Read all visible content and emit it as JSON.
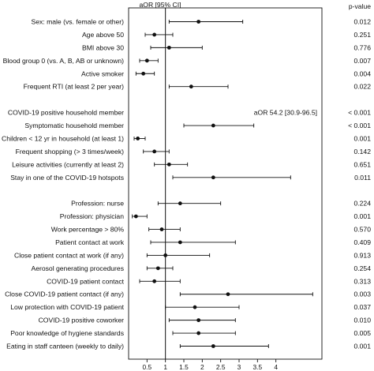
{
  "chart_data": {
    "type": "forest",
    "axis_title": "aOR [95% CI]",
    "pvalue_title": "p-value",
    "xlim": [
      0,
      5.25
    ],
    "reference_line": 1,
    "xticks": [
      0.5,
      1,
      1.5,
      2,
      2.5,
      3,
      3.5,
      4
    ],
    "rows": [
      {
        "label": "Sex: male (vs. female or other)",
        "aor": 1.9,
        "lo": 1.1,
        "hi": 3.1,
        "p": "0.012"
      },
      {
        "label": "Age above 50",
        "aor": 0.7,
        "lo": 0.45,
        "hi": 1.2,
        "p": "0.251"
      },
      {
        "label": "BMI above 30",
        "aor": 1.1,
        "lo": 0.6,
        "hi": 2.0,
        "p": "0.776"
      },
      {
        "label": "Blood group 0 (vs. A, B, AB or unknown)",
        "aor": 0.5,
        "lo": 0.3,
        "hi": 0.8,
        "p": "0.007"
      },
      {
        "label": "Active smoker",
        "aor": 0.4,
        "lo": 0.2,
        "hi": 0.7,
        "p": "0.004"
      },
      {
        "label": "Frequent RTI (at least 2 per year)",
        "aor": 1.7,
        "lo": 1.1,
        "hi": 2.7,
        "p": "0.022"
      },
      {
        "label": "",
        "aor": null,
        "lo": null,
        "hi": null,
        "p": ""
      },
      {
        "label": "COVID-19 positive household member",
        "aor": null,
        "lo": null,
        "hi": null,
        "p": "< 0.001",
        "note": "aOR 54.2 [30.9-96.5]"
      },
      {
        "label": "Symptomatic household member",
        "aor": 2.3,
        "lo": 1.5,
        "hi": 3.4,
        "p": "< 0.001"
      },
      {
        "label": "Children < 12 yr in household (at least 1)",
        "aor": 0.25,
        "lo": 0.15,
        "hi": 0.45,
        "p": "0.001"
      },
      {
        "label": "Frequent shopping (> 3 times/week)",
        "aor": 0.7,
        "lo": 0.4,
        "hi": 1.1,
        "p": "0.142"
      },
      {
        "label": "Leisure activities (currently at least 2)",
        "aor": 1.1,
        "lo": 0.7,
        "hi": 1.6,
        "p": "0.651"
      },
      {
        "label": "Stay in one of the COVID-19 hotspots",
        "aor": 2.3,
        "lo": 1.2,
        "hi": 4.4,
        "p": "0.011"
      },
      {
        "label": "",
        "aor": null,
        "lo": null,
        "hi": null,
        "p": ""
      },
      {
        "label": "Profession: nurse",
        "aor": 1.4,
        "lo": 0.8,
        "hi": 2.5,
        "p": "0.224"
      },
      {
        "label": "Profession: physician",
        "aor": 0.2,
        "lo": 0.1,
        "hi": 0.5,
        "p": "0.001"
      },
      {
        "label": "Work percentage > 80%",
        "aor": 0.9,
        "lo": 0.55,
        "hi": 1.4,
        "p": "0.570"
      },
      {
        "label": "Patient contact at work",
        "aor": 1.4,
        "lo": 0.6,
        "hi": 2.9,
        "p": "0.409"
      },
      {
        "label": "Close patient contact at work (if any)",
        "aor": 1.0,
        "lo": 0.5,
        "hi": 2.2,
        "p": "0.913"
      },
      {
        "label": "Aerosol generating procedures",
        "aor": 0.8,
        "lo": 0.5,
        "hi": 1.2,
        "p": "0.254"
      },
      {
        "label": "COVID-19 patient contact",
        "aor": 0.7,
        "lo": 0.3,
        "hi": 1.4,
        "p": "0.313"
      },
      {
        "label": "Close COVID-19 patient contact (if any)",
        "aor": 2.7,
        "lo": 1.4,
        "hi": 5.0,
        "p": "0.003"
      },
      {
        "label": "Low protection with COVID-19 patient",
        "aor": 1.8,
        "lo": 1.0,
        "hi": 3.0,
        "p": "0.037"
      },
      {
        "label": "COVID-19 positive coworker",
        "aor": 1.9,
        "lo": 1.1,
        "hi": 2.9,
        "p": "0.010"
      },
      {
        "label": "Poor knowledge of hygiene standards",
        "aor": 1.9,
        "lo": 1.2,
        "hi": 2.9,
        "p": "0.005"
      },
      {
        "label": "Eating in staff canteen (weekly to daily)",
        "aor": 2.3,
        "lo": 1.4,
        "hi": 3.8,
        "p": "0.001"
      }
    ]
  }
}
